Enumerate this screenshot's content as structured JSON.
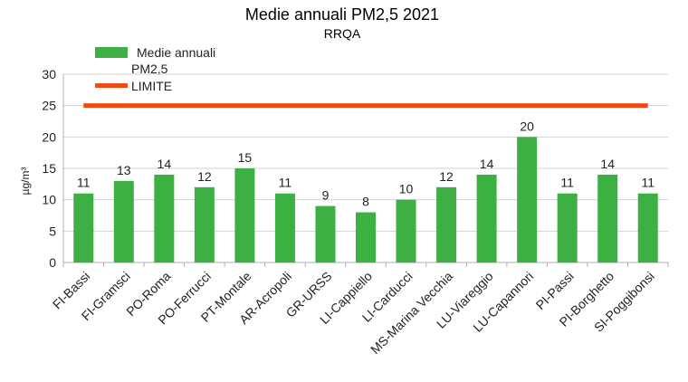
{
  "chart_data": {
    "type": "bar",
    "title": "Medie annuali PM2,5 2021",
    "subtitle": "RRQA",
    "ylabel": "µg/m³",
    "xlabel": "",
    "ylim": [
      0,
      30
    ],
    "yticks": [
      0,
      5,
      10,
      15,
      20,
      25,
      30
    ],
    "grid": true,
    "legend_position": "top-left",
    "categories": [
      "FI-Bassi",
      "FI-Gramsci",
      "PO-Roma",
      "PO-Ferrucci",
      "PT-Montale",
      "AR-Acropoli",
      "GR-URSS",
      "LI-Cappiello",
      "LI-Carducci",
      "MS-Marina Vecchia",
      "LU-Viareggio",
      "LU-Capannori",
      "PI-Passi",
      "PI-Borghetto",
      "SI-Poggibonsi"
    ],
    "series": [
      {
        "name": "Medie annuali PM2,5",
        "type": "bar",
        "color": "#3cb043",
        "values": [
          11,
          13,
          14,
          12,
          15,
          11,
          9,
          8,
          10,
          12,
          14,
          20,
          11,
          14,
          11
        ]
      },
      {
        "name": "LIMITE",
        "type": "line",
        "color": "#ee4b16",
        "value": 25
      }
    ]
  }
}
